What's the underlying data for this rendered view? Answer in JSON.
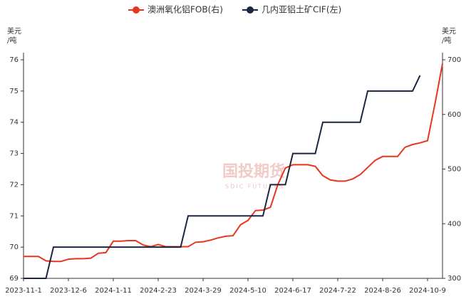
{
  "chart_data": {
    "type": "line",
    "categories": [
      "2023-11-1",
      null,
      null,
      null,
      null,
      null,
      "2023-12-6",
      null,
      null,
      null,
      null,
      null,
      "2024-1-11",
      null,
      null,
      null,
      null,
      null,
      "2024-2-23",
      null,
      null,
      null,
      null,
      null,
      "2024-3-29",
      null,
      null,
      null,
      null,
      null,
      "2024-5-10",
      null,
      null,
      null,
      null,
      null,
      "2024-6-17",
      null,
      null,
      null,
      null,
      null,
      "2024-7-22",
      null,
      null,
      null,
      null,
      null,
      "2024-8-26",
      null,
      null,
      null,
      null,
      null,
      "2024-10-9",
      null,
      null
    ],
    "series": [
      {
        "name": "澳洲氧化铝FOB(右)",
        "color": "#e8361e",
        "axis": "y2",
        "values": [
          340,
          340,
          340,
          332,
          331,
          331,
          335,
          336,
          336,
          337,
          346,
          347,
          368,
          368,
          369,
          369,
          361,
          358,
          362,
          358,
          358,
          358,
          358,
          366,
          367,
          370,
          374,
          377,
          378,
          398,
          406,
          424,
          425,
          430,
          472,
          502,
          508,
          508,
          508,
          505,
          488,
          480,
          478,
          478,
          482,
          490,
          503,
          516,
          523,
          523,
          523,
          540,
          545,
          548,
          552,
          620,
          693
        ]
      },
      {
        "name": "几内亚铝土矿CIF(左)",
        "color": "#1c2541",
        "values": [
          69,
          69,
          69,
          69,
          70,
          70,
          70,
          70,
          70,
          70,
          70,
          70,
          70,
          70,
          70,
          70,
          70,
          70,
          70,
          70,
          70,
          70,
          71,
          71,
          71,
          71,
          71,
          71,
          71,
          71,
          71,
          71,
          71,
          72,
          72,
          72,
          73,
          73,
          73,
          73,
          74,
          74,
          74,
          74,
          74,
          74,
          75,
          75,
          75,
          75,
          75,
          75,
          75,
          75.5,
          null,
          null,
          null
        ]
      }
    ],
    "ylabel": [
      "美元",
      "/吨"
    ],
    "y2label": [
      "美元",
      "/吨"
    ],
    "ylim": [
      69,
      76
    ],
    "yticks": [
      69,
      70,
      71,
      72,
      73,
      74,
      75,
      76
    ],
    "y2lim": [
      300,
      700
    ],
    "y2ticks": [
      300,
      400,
      500,
      600,
      700
    ],
    "watermark": {
      "cn": "国投期货",
      "en": "SDIC FUTURES"
    }
  }
}
